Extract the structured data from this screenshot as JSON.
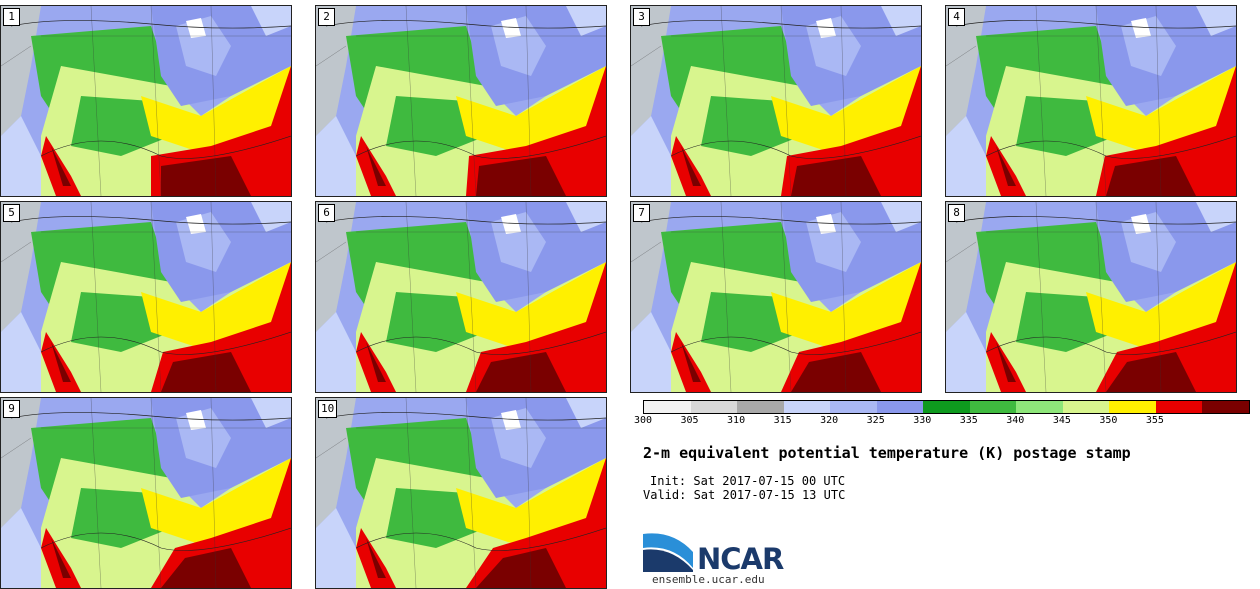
{
  "figure": {
    "title": "2-m equivalent potential temperature (K) postage stamp",
    "init": "Init: Sat 2017-07-15 00 UTC",
    "valid": "Valid: Sat 2017-07-15 13 UTC"
  },
  "panels": [
    {
      "label": "1"
    },
    {
      "label": "2"
    },
    {
      "label": "3"
    },
    {
      "label": "4"
    },
    {
      "label": "5"
    },
    {
      "label": "6"
    },
    {
      "label": "7"
    },
    {
      "label": "8"
    },
    {
      "label": "9"
    },
    {
      "label": "10"
    }
  ],
  "colorbar": {
    "ticks": [
      "300",
      "305",
      "310",
      "315",
      "320",
      "325",
      "330",
      "335",
      "340",
      "345",
      "350",
      "355"
    ],
    "colors": [
      "#f2f2f2",
      "#d8d8d8",
      "#a8a8a8",
      "#c8d4fa",
      "#aab8f4",
      "#8a98ec",
      "#0e9a1e",
      "#3fba3f",
      "#8ee67a",
      "#d8f58e",
      "#fff000",
      "#e80000",
      "#7a0000"
    ]
  },
  "logo": {
    "name": "NCAR",
    "url": "ensemble.ucar.edu"
  }
}
